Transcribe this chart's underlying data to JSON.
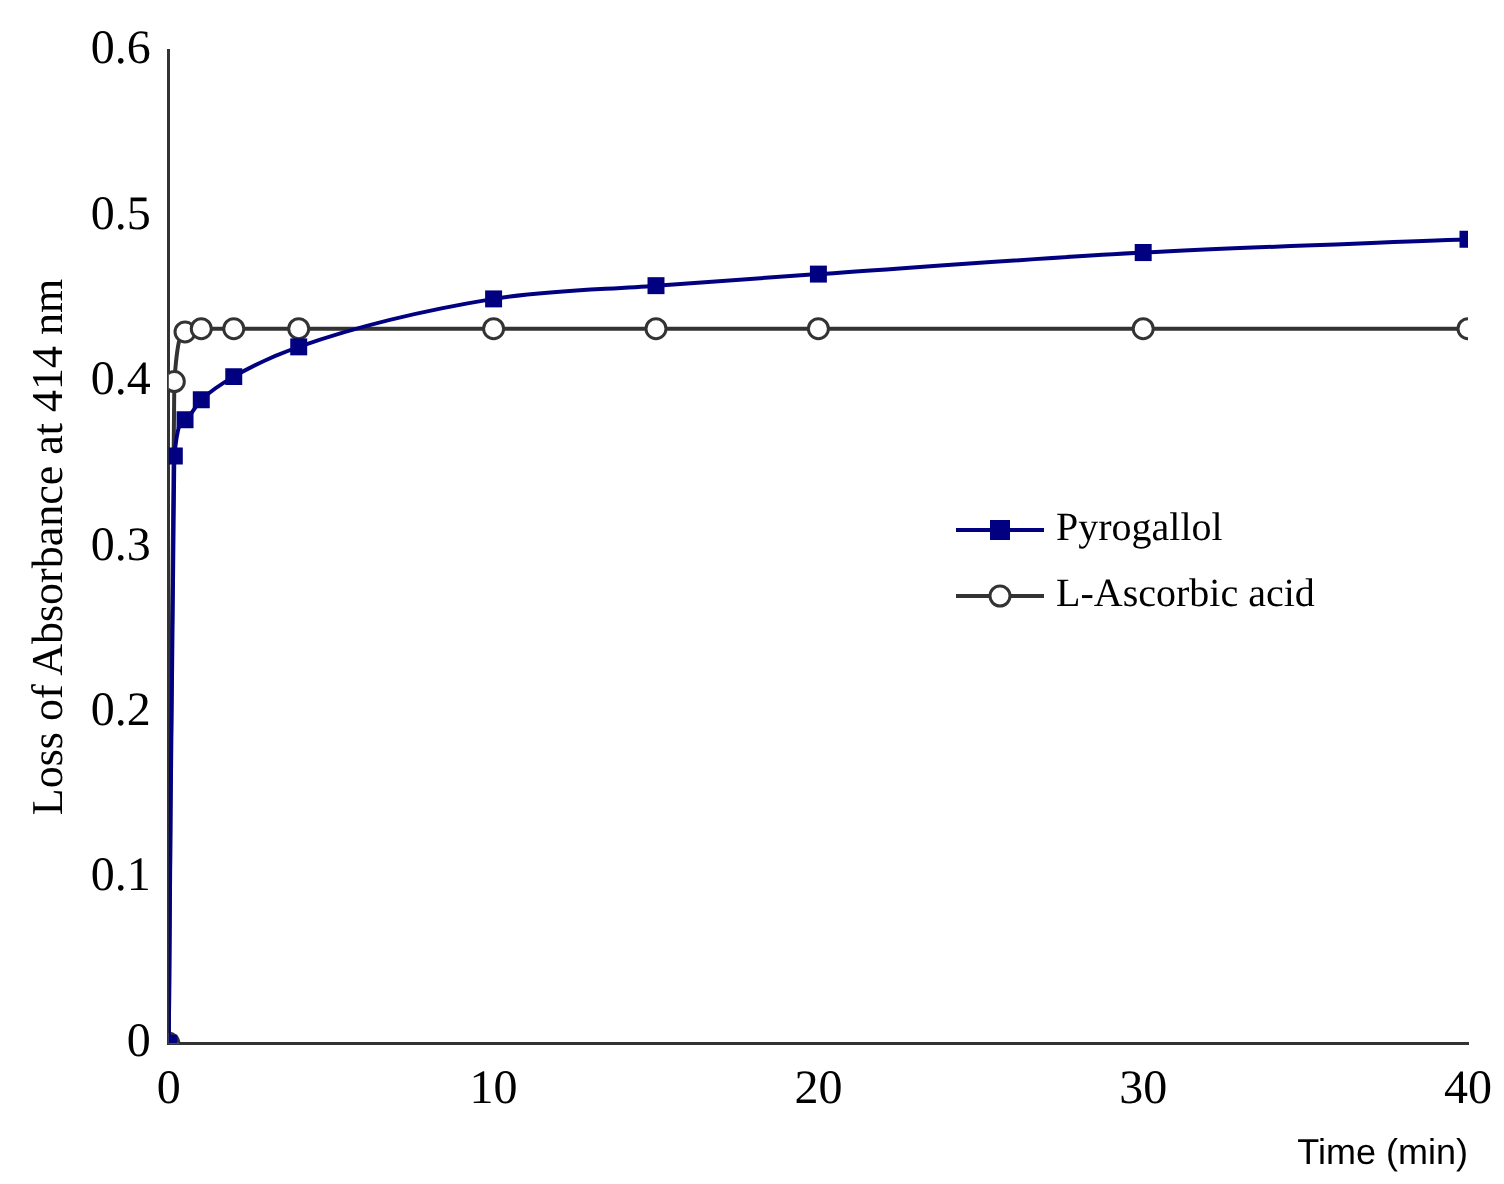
{
  "chart_data": {
    "type": "line",
    "xlabel": "Time (min)",
    "ylabel": "Loss of Absorbance at 414 nm",
    "xlim": [
      0,
      40
    ],
    "xticks": [
      0,
      10,
      20,
      30,
      40
    ],
    "ylim": [
      0,
      0.6
    ],
    "yticks": [
      0,
      0.1,
      0.2,
      0.3,
      0.4,
      0.5,
      0.6
    ],
    "grid": false,
    "legend": "right",
    "line_style": "solid",
    "series": [
      {
        "name": "Pyrogallol",
        "color": "#000080",
        "marker": "square",
        "x": [
          0,
          0.17,
          0.5,
          1,
          2,
          4,
          10,
          15,
          20,
          30,
          40
        ],
        "values": [
          0,
          0.355,
          0.377,
          0.389,
          0.403,
          0.421,
          0.45,
          0.458,
          0.465,
          0.478,
          0.486
        ]
      },
      {
        "name": "L-Ascorbic acid",
        "color": "#333333",
        "marker": "circle",
        "x": [
          0,
          0.17,
          0.5,
          1,
          2,
          4,
          10,
          15,
          20,
          30,
          40
        ],
        "values": [
          0,
          0.4,
          0.43,
          0.432,
          0.432,
          0.432,
          0.432,
          0.432,
          0.432,
          0.432,
          0.432
        ]
      }
    ]
  }
}
